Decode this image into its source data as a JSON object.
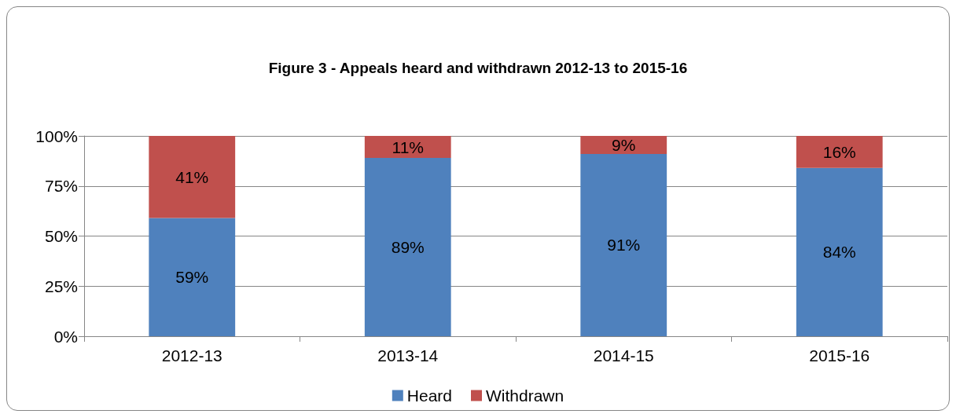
{
  "chart_data": {
    "type": "bar",
    "title": "Figure 3 - Appeals heard and withdrawn 2012-13 to 2015-16",
    "categories": [
      "2012-13",
      "2013-14",
      "2014-15",
      "2015-16"
    ],
    "stacked": true,
    "series": [
      {
        "name": "Heard",
        "color": "#4f81bd",
        "values": [
          59,
          89,
          91,
          84
        ],
        "value_labels": [
          "59%",
          "89%",
          "91%",
          "84%"
        ]
      },
      {
        "name": "Withdrawn",
        "color": "#c0504d",
        "values": [
          41,
          11,
          9,
          16
        ],
        "value_labels": [
          "41%",
          "11%",
          "9%",
          "16%"
        ]
      }
    ],
    "ylim": [
      0,
      100
    ],
    "yticks": [
      {
        "value": 0,
        "label": "0%"
      },
      {
        "value": 25,
        "label": "25%"
      },
      {
        "value": 50,
        "label": "50%"
      },
      {
        "value": 75,
        "label": "75%"
      },
      {
        "value": 100,
        "label": "100%"
      }
    ],
    "grid": "y",
    "legend": "bottom"
  }
}
